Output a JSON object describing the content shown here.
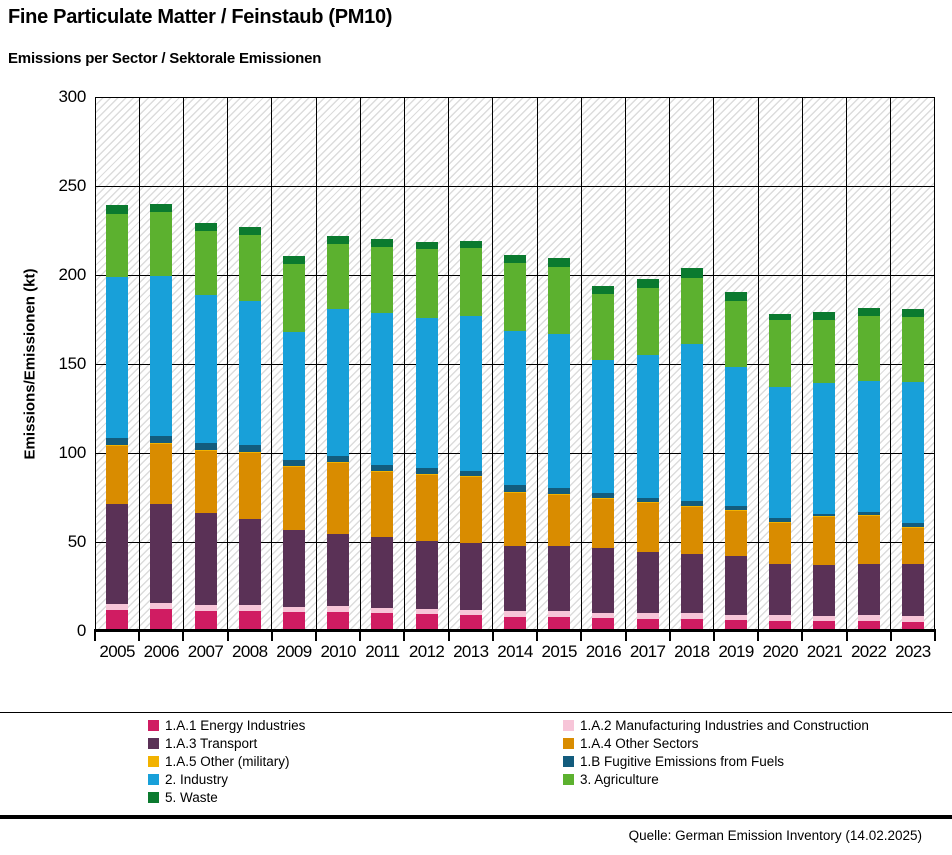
{
  "header": {
    "title": "Fine Particulate Matter / Feinstaub (PM10)",
    "subtitle": "Emissions per Sector / Sektorale Emissionen"
  },
  "chart_data": {
    "type": "bar",
    "stacked": true,
    "title": "Fine Particulate Matter / Feinstaub (PM10) — Emissions per Sector",
    "xlabel": "",
    "ylabel": "Emissions/Emissionen (kt)",
    "ylim": [
      0,
      300
    ],
    "ytick_step": 50,
    "grid": true,
    "background_hatch": true,
    "legend_position": "bottom",
    "categories": [
      "2005",
      "2006",
      "2007",
      "2008",
      "2009",
      "2010",
      "2011",
      "2012",
      "2013",
      "2014",
      "2015",
      "2016",
      "2017",
      "2018",
      "2019",
      "2020",
      "2021",
      "2022",
      "2023"
    ],
    "series": [
      {
        "name": "1.A.1 Energy Industries",
        "color": "#d01c62",
        "values": [
          12,
          12.5,
          11.5,
          11,
          10.5,
          10.5,
          10,
          9.5,
          9,
          8,
          8,
          7.5,
          7,
          6.5,
          6,
          5.5,
          5.5,
          5.5,
          5
        ]
      },
      {
        "name": "1.A.2 Manufacturing Industries and Construction",
        "color": "#f7c5d8",
        "values": [
          3,
          3,
          3,
          3.5,
          3,
          3.5,
          3,
          3,
          3,
          3,
          3,
          2.5,
          3,
          3.5,
          3,
          3.5,
          3,
          3.5,
          3.5
        ]
      },
      {
        "name": "1.A.3 Transport",
        "color": "#5a3156",
        "values": [
          56.5,
          56,
          52,
          48.5,
          43.5,
          40.5,
          40,
          38,
          37.5,
          37,
          36.5,
          36.5,
          34.5,
          33.5,
          33,
          28.5,
          28.5,
          28.5,
          29
        ]
      },
      {
        "name": "1.A.4 Other Sectors",
        "color": "#d98c00",
        "values": [
          32.5,
          33.5,
          34.5,
          37,
          35,
          40,
          36.5,
          37,
          37,
          29.5,
          29,
          28,
          27.5,
          26.5,
          25.5,
          23,
          27,
          27,
          20.5
        ]
      },
      {
        "name": "1.A.5 Other (military)",
        "color": "#f2b200",
        "values": [
          0.5,
          0.5,
          0.5,
          0.5,
          0.5,
          0.5,
          0.5,
          0.5,
          0.5,
          0.5,
          0.5,
          0.5,
          0.5,
          0.5,
          0.5,
          0.5,
          0.5,
          0.5,
          0.5
        ]
      },
      {
        "name": "1.B Fugitive Emissions from Fuels",
        "color": "#135c7d",
        "values": [
          4,
          4,
          4,
          4,
          3.5,
          3.5,
          3,
          3.5,
          3,
          4,
          3.5,
          2.5,
          2,
          2.5,
          2.5,
          2.5,
          1.5,
          2,
          2
        ]
      },
      {
        "name": "2. Industry",
        "color": "#18a0d9",
        "values": [
          90.5,
          90,
          83,
          81,
          72,
          82.5,
          85.5,
          84.5,
          87,
          86.5,
          86.5,
          75,
          80.5,
          88.5,
          78,
          73.5,
          73.5,
          73.5,
          79.5
        ]
      },
      {
        "name": "3. Agriculture",
        "color": "#5cb12f",
        "values": [
          35.5,
          36,
          36,
          37,
          38,
          36.5,
          37.5,
          38.5,
          38,
          38,
          37.5,
          37,
          37.5,
          37,
          37,
          37.5,
          35.5,
          36.5,
          36.5
        ]
      },
      {
        "name": "5. Waste",
        "color": "#0b7a2f",
        "values": [
          5,
          4.5,
          5,
          4.5,
          4.5,
          4.5,
          4.5,
          4,
          4,
          4.5,
          5,
          4.5,
          5,
          5.5,
          5,
          3.5,
          4,
          4.5,
          4.5
        ]
      }
    ]
  },
  "footer": {
    "source": "Quelle: German Emission Inventory (14.02.2025)"
  }
}
